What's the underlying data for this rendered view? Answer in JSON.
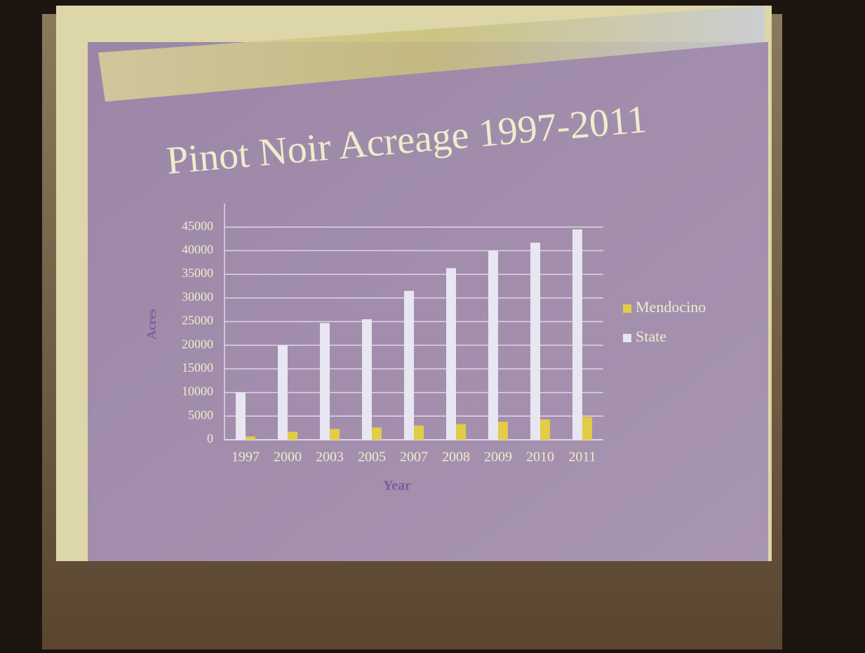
{
  "chart_data": {
    "type": "bar",
    "title": "Pinot Noir Acreage 1997-2011",
    "x_label": "Year",
    "y_label": "Acres",
    "categories": [
      "1997",
      "2000",
      "2003",
      "2005",
      "2007",
      "2008",
      "2009",
      "2010",
      "2011"
    ],
    "series": [
      {
        "name": "Mendocino",
        "color": "#e3cc46",
        "values": [
          700,
          1700,
          2300,
          2600,
          3000,
          3300,
          3800,
          4300,
          4800
        ]
      },
      {
        "name": "State",
        "color": "#e8e6f0",
        "values": [
          10000,
          20000,
          24700,
          25500,
          31500,
          36300,
          40000,
          41700,
          44500
        ]
      }
    ],
    "ylim": [
      0,
      50000
    ],
    "yticks": [
      0,
      5000,
      10000,
      15000,
      20000,
      25000,
      30000,
      35000,
      40000,
      45000
    ],
    "grid": true,
    "legend": "right"
  }
}
